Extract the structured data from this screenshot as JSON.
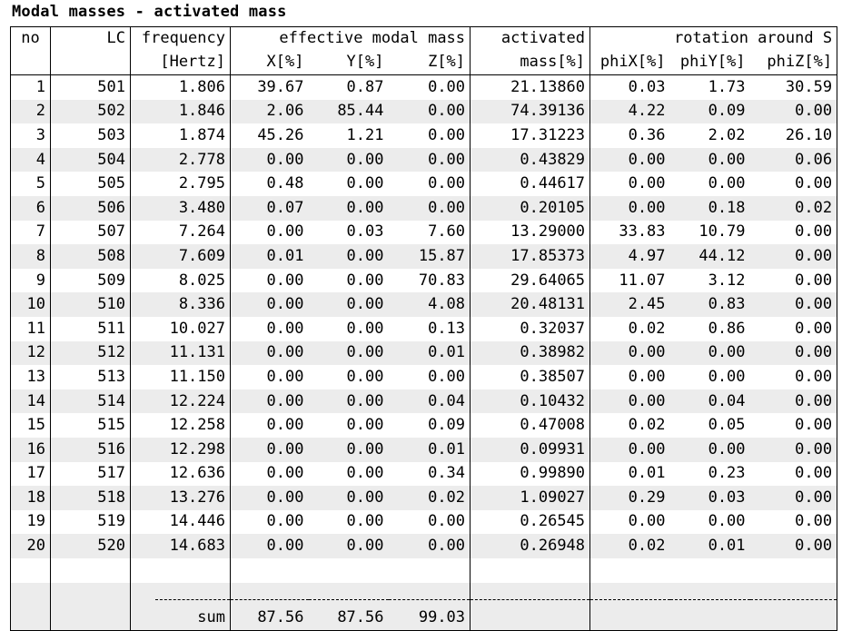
{
  "title": "Modal masses - activated mass",
  "headers": {
    "no": "no",
    "lc": "LC",
    "frequency": "frequency",
    "frequency_unit": "[Hertz]",
    "effective_group": "effective modal mass",
    "x": "X[%]",
    "y": "Y[%]",
    "z": "Z[%]",
    "activated": "activated",
    "activated_unit": "mass[%]",
    "rotation_group": "rotation around S",
    "phix": "phiX[%]",
    "phiy": "phiY[%]",
    "phiz": "phiZ[%]"
  },
  "rows": [
    {
      "no": "1",
      "lc": "501",
      "freq": "1.806",
      "x": "39.67",
      "y": "0.87",
      "z": "0.00",
      "act": "21.13860",
      "phix": "0.03",
      "phiy": "1.73",
      "phiz": "30.59"
    },
    {
      "no": "2",
      "lc": "502",
      "freq": "1.846",
      "x": "2.06",
      "y": "85.44",
      "z": "0.00",
      "act": "74.39136",
      "phix": "4.22",
      "phiy": "0.09",
      "phiz": "0.00"
    },
    {
      "no": "3",
      "lc": "503",
      "freq": "1.874",
      "x": "45.26",
      "y": "1.21",
      "z": "0.00",
      "act": "17.31223",
      "phix": "0.36",
      "phiy": "2.02",
      "phiz": "26.10"
    },
    {
      "no": "4",
      "lc": "504",
      "freq": "2.778",
      "x": "0.00",
      "y": "0.00",
      "z": "0.00",
      "act": "0.43829",
      "phix": "0.00",
      "phiy": "0.00",
      "phiz": "0.06"
    },
    {
      "no": "5",
      "lc": "505",
      "freq": "2.795",
      "x": "0.48",
      "y": "0.00",
      "z": "0.00",
      "act": "0.44617",
      "phix": "0.00",
      "phiy": "0.00",
      "phiz": "0.00"
    },
    {
      "no": "6",
      "lc": "506",
      "freq": "3.480",
      "x": "0.07",
      "y": "0.00",
      "z": "0.00",
      "act": "0.20105",
      "phix": "0.00",
      "phiy": "0.18",
      "phiz": "0.02"
    },
    {
      "no": "7",
      "lc": "507",
      "freq": "7.264",
      "x": "0.00",
      "y": "0.03",
      "z": "7.60",
      "act": "13.29000",
      "phix": "33.83",
      "phiy": "10.79",
      "phiz": "0.00"
    },
    {
      "no": "8",
      "lc": "508",
      "freq": "7.609",
      "x": "0.01",
      "y": "0.00",
      "z": "15.87",
      "act": "17.85373",
      "phix": "4.97",
      "phiy": "44.12",
      "phiz": "0.00"
    },
    {
      "no": "9",
      "lc": "509",
      "freq": "8.025",
      "x": "0.00",
      "y": "0.00",
      "z": "70.83",
      "act": "29.64065",
      "phix": "11.07",
      "phiy": "3.12",
      "phiz": "0.00"
    },
    {
      "no": "10",
      "lc": "510",
      "freq": "8.336",
      "x": "0.00",
      "y": "0.00",
      "z": "4.08",
      "act": "20.48131",
      "phix": "2.45",
      "phiy": "0.83",
      "phiz": "0.00"
    },
    {
      "no": "11",
      "lc": "511",
      "freq": "10.027",
      "x": "0.00",
      "y": "0.00",
      "z": "0.13",
      "act": "0.32037",
      "phix": "0.02",
      "phiy": "0.86",
      "phiz": "0.00"
    },
    {
      "no": "12",
      "lc": "512",
      "freq": "11.131",
      "x": "0.00",
      "y": "0.00",
      "z": "0.01",
      "act": "0.38982",
      "phix": "0.00",
      "phiy": "0.00",
      "phiz": "0.00"
    },
    {
      "no": "13",
      "lc": "513",
      "freq": "11.150",
      "x": "0.00",
      "y": "0.00",
      "z": "0.00",
      "act": "0.38507",
      "phix": "0.00",
      "phiy": "0.00",
      "phiz": "0.00"
    },
    {
      "no": "14",
      "lc": "514",
      "freq": "12.224",
      "x": "0.00",
      "y": "0.00",
      "z": "0.04",
      "act": "0.10432",
      "phix": "0.00",
      "phiy": "0.04",
      "phiz": "0.00"
    },
    {
      "no": "15",
      "lc": "515",
      "freq": "12.258",
      "x": "0.00",
      "y": "0.00",
      "z": "0.09",
      "act": "0.47008",
      "phix": "0.02",
      "phiy": "0.05",
      "phiz": "0.00"
    },
    {
      "no": "16",
      "lc": "516",
      "freq": "12.298",
      "x": "0.00",
      "y": "0.00",
      "z": "0.01",
      "act": "0.09931",
      "phix": "0.00",
      "phiy": "0.00",
      "phiz": "0.00"
    },
    {
      "no": "17",
      "lc": "517",
      "freq": "12.636",
      "x": "0.00",
      "y": "0.00",
      "z": "0.34",
      "act": "0.99890",
      "phix": "0.01",
      "phiy": "0.23",
      "phiz": "0.00"
    },
    {
      "no": "18",
      "lc": "518",
      "freq": "13.276",
      "x": "0.00",
      "y": "0.00",
      "z": "0.02",
      "act": "1.09027",
      "phix": "0.29",
      "phiy": "0.03",
      "phiz": "0.00"
    },
    {
      "no": "19",
      "lc": "519",
      "freq": "14.446",
      "x": "0.00",
      "y": "0.00",
      "z": "0.00",
      "act": "0.26545",
      "phix": "0.00",
      "phiy": "0.00",
      "phiz": "0.00"
    },
    {
      "no": "20",
      "lc": "520",
      "freq": "14.683",
      "x": "0.00",
      "y": "0.00",
      "z": "0.00",
      "act": "0.26948",
      "phix": "0.02",
      "phiy": "0.01",
      "phiz": "0.00"
    }
  ],
  "sum": {
    "label": "sum",
    "x": "87.56",
    "y": "87.56",
    "z": "99.03"
  }
}
